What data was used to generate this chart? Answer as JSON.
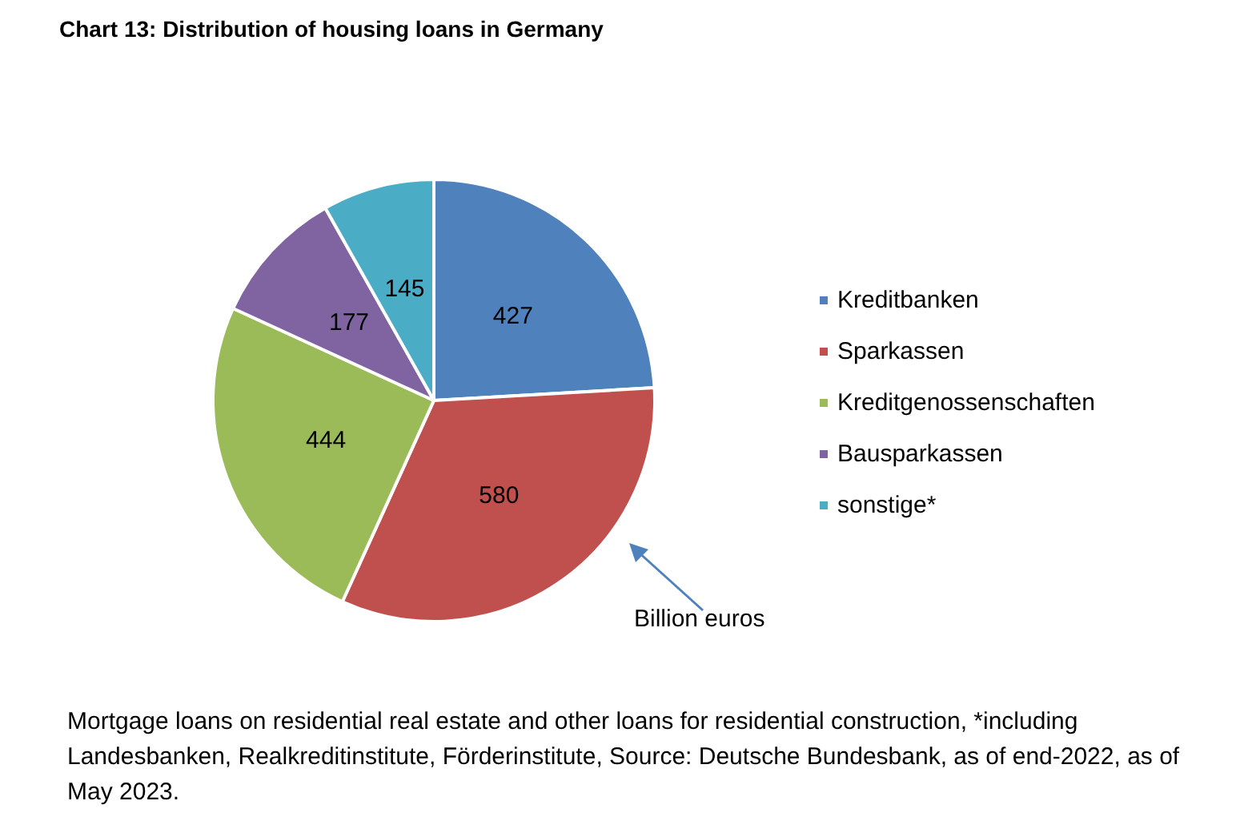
{
  "chart_data": {
    "type": "pie",
    "title": "Chart 13: Distribution of housing loans in Germany",
    "categories": [
      "Kreditbanken",
      "Sparkassen",
      "Kreditgenossenschaften",
      "Bausparkassen",
      "sonstige*"
    ],
    "values": [
      427,
      580,
      444,
      177,
      145
    ],
    "colors": [
      "#4f81bd",
      "#c0504d",
      "#9bbb59",
      "#8064a2",
      "#4bacc6"
    ],
    "data_labels": true,
    "legend": "right",
    "annotations": [
      "Billion euros",
      "Mortgage loans on residential real estate and other loans for residential construction, *including Landesbanken, Realkreditinstitute, Förderinstitute, Source: Deutsche Bundesbank, as of end-2022, as of May 2023."
    ]
  }
}
